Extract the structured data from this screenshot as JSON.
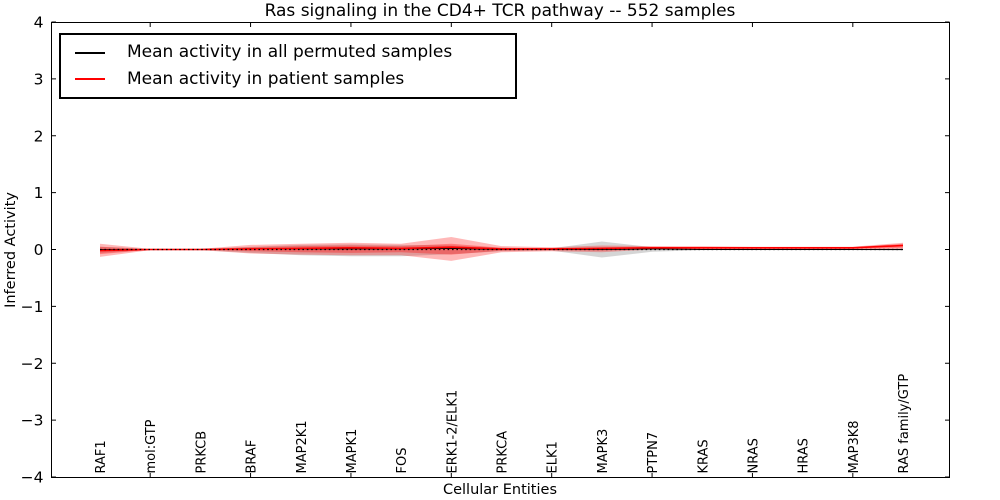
{
  "title": "Ras signaling in the CD4+ TCR pathway -- 552 samples",
  "legend": {
    "items": [
      {
        "label": "Mean activity in all permuted samples",
        "color": "#000000"
      },
      {
        "label": "Mean activity in patient samples",
        "color": "#ff0000"
      }
    ]
  },
  "chart_data": {
    "type": "line",
    "title": "Ras signaling in the CD4+ TCR pathway -- 552 samples",
    "xlabel": "Cellular Entities",
    "ylabel": "Inferred Activity",
    "ylim": [
      -4,
      4
    ],
    "grid": false,
    "legend_position": "upper left",
    "yticks": [
      {
        "value": 4,
        "label": "4"
      },
      {
        "value": 3,
        "label": "3"
      },
      {
        "value": 2,
        "label": "2"
      },
      {
        "value": 1,
        "label": "1"
      },
      {
        "value": 0,
        "label": "0"
      },
      {
        "value": -1,
        "label": "−1"
      },
      {
        "value": -2,
        "label": "−2"
      },
      {
        "value": -3,
        "label": "−3"
      },
      {
        "value": -4,
        "label": "−4"
      }
    ],
    "xtick_indices": [
      1,
      3,
      5,
      7,
      9,
      11,
      13,
      15
    ],
    "categories": [
      "RAF1",
      "mol:GTP",
      "PRKCB",
      "BRAF",
      "MAP2K1",
      "MAPK1",
      "FOS",
      "ERK1-2/ELK1",
      "PRKCA",
      "ELK1",
      "MAPK3",
      "PTPN7",
      "KRAS",
      "NRAS",
      "HRAS",
      "MAP3K8",
      "RAS family/GTP"
    ],
    "zero_line": {
      "value": 0,
      "style": "dotted",
      "color": "#000000"
    },
    "series": [
      {
        "name": "Mean activity in all permuted samples",
        "color": "#000000",
        "width": 1,
        "values": [
          0.0,
          0.0,
          0.0,
          0.01,
          0.01,
          0.01,
          0.01,
          0.02,
          0.0,
          0.0,
          0.0,
          0.01,
          0.0,
          0.0,
          0.0,
          0.0,
          0.0
        ]
      },
      {
        "name": "Mean activity in patient samples",
        "color": "#ff0000",
        "width": 1.6,
        "values": [
          -0.02,
          0.0,
          0.0,
          0.01,
          0.02,
          0.03,
          0.02,
          0.04,
          0.01,
          0.01,
          0.02,
          0.03,
          0.03,
          0.03,
          0.03,
          0.03,
          0.07
        ]
      }
    ],
    "bands": [
      {
        "name": "permuted-samples-band",
        "color": "#888888",
        "opacity": 0.35,
        "upper": [
          0.05,
          0.01,
          0.01,
          0.05,
          0.08,
          0.09,
          0.08,
          0.07,
          0.03,
          0.02,
          0.14,
          0.04,
          0.01,
          0.01,
          0.01,
          0.01,
          0.02
        ],
        "lower": [
          -0.06,
          -0.01,
          -0.01,
          -0.06,
          -0.1,
          -0.12,
          -0.12,
          -0.08,
          -0.03,
          -0.02,
          -0.14,
          -0.04,
          -0.01,
          -0.01,
          -0.01,
          -0.01,
          -0.02
        ]
      },
      {
        "name": "patient-samples-band-outer",
        "color": "#ff0000",
        "opacity": 0.28,
        "upper": [
          0.1,
          0.01,
          0.01,
          0.08,
          0.1,
          0.12,
          0.1,
          0.22,
          0.06,
          0.04,
          0.07,
          0.06,
          0.06,
          0.05,
          0.05,
          0.05,
          0.12
        ],
        "lower": [
          -0.13,
          -0.01,
          -0.01,
          -0.07,
          -0.09,
          -0.1,
          -0.1,
          -0.2,
          -0.05,
          -0.03,
          -0.05,
          0.0,
          0.0,
          0.0,
          0.0,
          0.0,
          0.01
        ]
      },
      {
        "name": "patient-samples-band-inner",
        "color": "#ff0000",
        "opacity": 0.32,
        "upper": [
          0.05,
          0.005,
          0.005,
          0.04,
          0.06,
          0.07,
          0.06,
          0.1,
          0.03,
          0.02,
          0.04,
          0.05,
          0.04,
          0.04,
          0.04,
          0.04,
          0.1
        ],
        "lower": [
          -0.08,
          -0.005,
          -0.005,
          -0.03,
          -0.05,
          -0.06,
          -0.05,
          -0.09,
          -0.02,
          -0.01,
          -0.02,
          0.01,
          0.01,
          0.01,
          0.01,
          0.01,
          0.03
        ]
      }
    ]
  }
}
